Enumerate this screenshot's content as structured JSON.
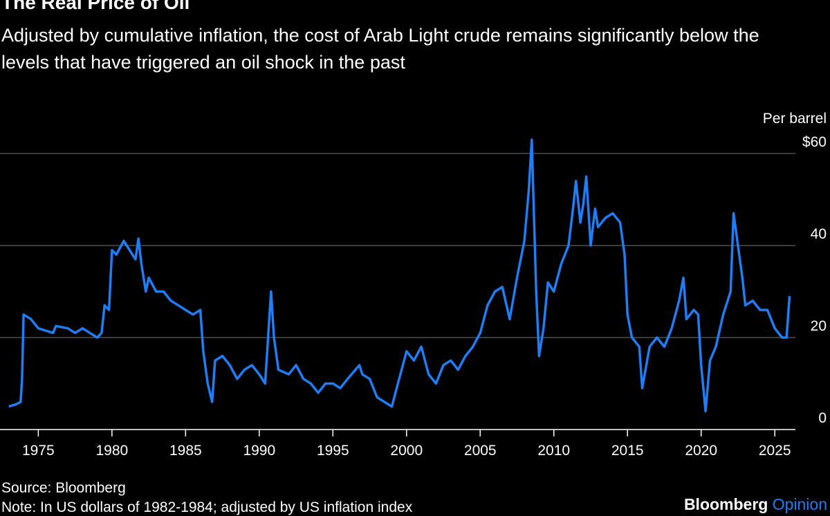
{
  "chart_data": {
    "type": "line",
    "title": "The Real Price of Oil",
    "subtitle": "Adjusted by cumulative inflation, the cost of Arab Light crude remains significantly below the levels that have triggered an oil shock in the past",
    "y_label": "Per barrel",
    "source": "Source: Bloomberg",
    "note": "Note: In US dollars of 1982-1984; adjusted by US inflation index",
    "brand": "Bloomberg",
    "brand_section": "Opinion",
    "x": [
      1973.0,
      1973.5,
      1973.8,
      1973.9,
      1974.0,
      1974.5,
      1975,
      1976,
      1976.2,
      1977,
      1977.5,
      1978,
      1978.5,
      1979,
      1979.3,
      1979.5,
      1979.8,
      1980,
      1980.3,
      1980.8,
      1981.2,
      1981.6,
      1981.8,
      1982,
      1982.3,
      1982.5,
      1983,
      1983.5,
      1984,
      1984.5,
      1985,
      1985.5,
      1986,
      1986.2,
      1986.5,
      1986.8,
      1987,
      1987.5,
      1988,
      1988.5,
      1989,
      1989.5,
      1990,
      1990.4,
      1990.8,
      1991,
      1991.3,
      1992,
      1992.5,
      1993,
      1993.5,
      1994,
      1994.5,
      1995,
      1995.5,
      1996,
      1996.8,
      1997,
      1997.5,
      1998,
      1998.5,
      1999,
      1999.5,
      2000,
      2000.5,
      2001,
      2001.5,
      2002,
      2002.5,
      2003,
      2003.5,
      2004,
      2004.5,
      2005,
      2005.5,
      2006,
      2006.5,
      2007,
      2007.5,
      2008,
      2008.3,
      2008.5,
      2008.8,
      2009,
      2009.3,
      2009.6,
      2010,
      2010.5,
      2011,
      2011.3,
      2011.5,
      2011.8,
      2012,
      2012.2,
      2012.5,
      2012.8,
      2013,
      2013.5,
      2014,
      2014.5,
      2014.8,
      2015,
      2015.3,
      2015.8,
      2016,
      2016.5,
      2017,
      2017.5,
      2018,
      2018.5,
      2018.8,
      2019,
      2019.5,
      2019.8,
      2020,
      2020.3,
      2020.6,
      2021,
      2021.5,
      2022,
      2022.2,
      2022.5,
      2022.8,
      2023,
      2023.5,
      2024,
      2024.5,
      2025,
      2025.5,
      2025.8,
      2026
    ],
    "series": [
      {
        "name": "Arab Light crude",
        "color": "#1f7df6",
        "values": [
          5,
          5.5,
          6,
          11,
          25,
          24,
          22,
          21,
          22.5,
          22,
          21,
          22,
          21,
          20,
          21,
          27,
          26,
          39,
          38,
          41,
          39,
          37,
          41.5,
          36,
          30,
          33,
          30,
          30,
          28,
          27,
          26,
          25,
          26,
          17,
          10,
          6,
          15,
          16,
          14,
          11,
          13,
          14,
          12,
          10,
          30,
          20,
          13,
          12,
          14,
          11,
          10,
          8,
          10,
          10,
          9,
          11,
          14,
          12,
          11,
          7,
          6,
          5,
          11,
          17,
          15,
          18,
          12,
          10,
          14,
          15,
          13,
          16,
          18,
          21,
          27,
          30,
          31,
          24,
          33,
          41,
          52,
          63,
          30,
          16,
          22,
          32,
          30,
          36,
          40,
          48,
          54,
          45,
          49,
          55,
          40,
          48,
          44,
          46,
          47,
          45,
          38,
          25,
          20,
          18,
          9,
          18,
          20,
          18,
          22,
          28,
          33,
          24,
          26,
          25,
          14,
          4,
          15,
          18,
          25,
          30,
          47,
          40,
          33,
          27,
          28,
          26,
          26,
          22,
          20,
          20,
          29
        ]
      }
    ],
    "xlim": [
      1972.4,
      2026.4
    ],
    "xticks": [
      1975,
      1980,
      1985,
      1990,
      1995,
      2000,
      2005,
      2010,
      2015,
      2020,
      2025
    ],
    "ylim": [
      0,
      66
    ],
    "yticks": [
      0,
      20,
      40,
      {
        "value": 60,
        "label": "$60"
      }
    ],
    "grid": true
  }
}
